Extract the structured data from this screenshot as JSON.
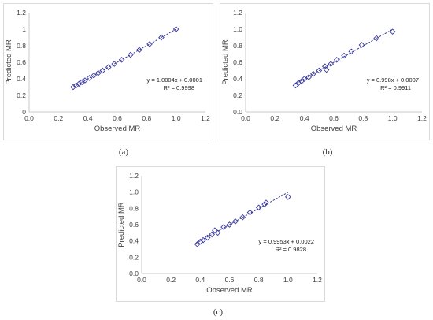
{
  "chart_data": [
    {
      "type": "scatter",
      "panel_label": "(a)",
      "xlabel": "Observed MR",
      "ylabel": "Predicted MR",
      "xlim": [
        0.0,
        1.2
      ],
      "ylim": [
        0.0,
        1.2
      ],
      "x_ticks": [
        "0.0",
        "0.2",
        "0.4",
        "0.6",
        "0.8",
        "1.0",
        "1.2"
      ],
      "y_ticks": [
        "0",
        "0.2",
        "0.4",
        "0.6",
        "0.8",
        "1",
        "1.2"
      ],
      "equation": "y = 1.0004x + 0.0001",
      "r2_label": "R² = 0.9998",
      "trendline": {
        "slope": 1.0004,
        "intercept": 0.0001,
        "x_range": [
          0.3,
          1.0
        ]
      },
      "points": {
        "x": [
          0.3,
          0.32,
          0.34,
          0.36,
          0.38,
          0.41,
          0.44,
          0.47,
          0.5,
          0.54,
          0.58,
          0.63,
          0.69,
          0.75,
          0.82,
          0.9,
          1.0
        ],
        "y": [
          0.3,
          0.32,
          0.34,
          0.36,
          0.38,
          0.41,
          0.44,
          0.47,
          0.5,
          0.54,
          0.58,
          0.63,
          0.69,
          0.75,
          0.82,
          0.9,
          1.0
        ]
      },
      "marker": "diamond",
      "marker_color": "#3b3b9e",
      "trend_color": "#3b3b9e"
    },
    {
      "type": "scatter",
      "panel_label": "(b)",
      "xlabel": "Observed MR",
      "ylabel": "Predicted MR",
      "xlim": [
        0.0,
        1.2
      ],
      "ylim": [
        0.0,
        1.2
      ],
      "x_ticks": [
        "0.0",
        "0.2",
        "0.4",
        "0.6",
        "0.8",
        "1.0",
        "1.2"
      ],
      "y_ticks": [
        "0.0",
        "0.2",
        "0.4",
        "0.6",
        "0.8",
        "1.0",
        "1.2"
      ],
      "equation": "y = 0.998x + 0.0007",
      "r2_label": "R² = 0.9911",
      "trendline": {
        "slope": 0.998,
        "intercept": 0.0007,
        "x_range": [
          0.33,
          1.0
        ]
      },
      "points": {
        "x": [
          0.34,
          0.36,
          0.38,
          0.4,
          0.43,
          0.46,
          0.5,
          0.54,
          0.55,
          0.58,
          0.62,
          0.67,
          0.72,
          0.79,
          0.89,
          1.0
        ],
        "y": [
          0.32,
          0.35,
          0.37,
          0.4,
          0.42,
          0.46,
          0.5,
          0.55,
          0.51,
          0.58,
          0.63,
          0.68,
          0.73,
          0.81,
          0.89,
          0.97
        ]
      },
      "marker": "diamond",
      "marker_color": "#3b3b9e",
      "trend_color": "#3b3b9e"
    },
    {
      "type": "scatter",
      "panel_label": "(c)",
      "xlabel": "Observed MR",
      "ylabel": "Predicted MR",
      "xlim": [
        0.0,
        1.2
      ],
      "ylim": [
        0.0,
        1.2
      ],
      "x_ticks": [
        "0.0",
        "0.2",
        "0.4",
        "0.6",
        "0.8",
        "1.0",
        "1.2"
      ],
      "y_ticks": [
        "0.0",
        "0.2",
        "0.4",
        "0.6",
        "0.8",
        "1.0",
        "1.2"
      ],
      "equation": "y = 0.9953x + 0.0022",
      "r2_label": "R² = 0.9828",
      "trendline": {
        "slope": 0.9953,
        "intercept": 0.0022,
        "x_range": [
          0.37,
          1.0
        ]
      },
      "points": {
        "x": [
          0.38,
          0.4,
          0.42,
          0.45,
          0.48,
          0.5,
          0.52,
          0.56,
          0.6,
          0.64,
          0.69,
          0.74,
          0.8,
          0.84,
          0.85,
          1.0
        ],
        "y": [
          0.36,
          0.39,
          0.41,
          0.44,
          0.48,
          0.53,
          0.5,
          0.57,
          0.6,
          0.64,
          0.69,
          0.75,
          0.81,
          0.85,
          0.87,
          0.94
        ]
      },
      "marker": "diamond",
      "marker_color": "#3b3b9e",
      "trend_color": "#3b3b9e"
    }
  ]
}
